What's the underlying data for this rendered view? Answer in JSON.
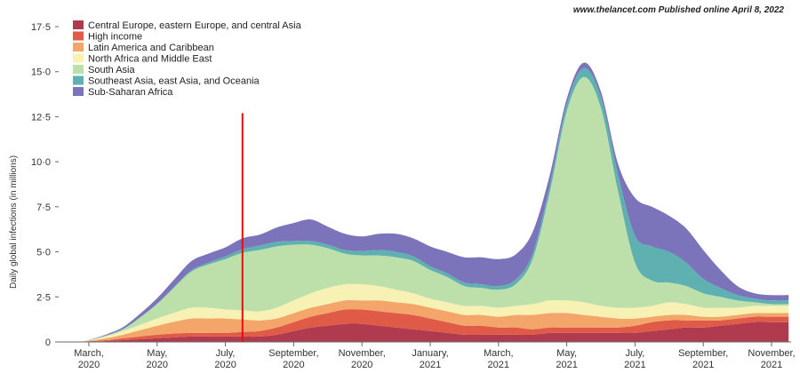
{
  "credit": "www.thelancet.com Published online April 8, 2022",
  "chart_data": {
    "type": "area",
    "stacked": true,
    "ylabel": "Daily global infections (in millions)",
    "ylim": [
      0,
      17.5
    ],
    "y_ticks": [
      0,
      2.5,
      5.0,
      7.5,
      10.0,
      12.5,
      15.0,
      17.5
    ],
    "y_tick_labels": [
      "0",
      "2·5",
      "5·0",
      "7·5",
      "10·0",
      "12·5",
      "15·0",
      "17·5"
    ],
    "x_ticks": [
      {
        "month": 0,
        "label": [
          "March,",
          "2020"
        ]
      },
      {
        "month": 2,
        "label": [
          "May,",
          "2020"
        ]
      },
      {
        "month": 4,
        "label": [
          "July,",
          "2020"
        ]
      },
      {
        "month": 6,
        "label": [
          "September,",
          "2020"
        ]
      },
      {
        "month": 8,
        "label": [
          "November,",
          "2020"
        ]
      },
      {
        "month": 10,
        "label": [
          "January,",
          "2021"
        ]
      },
      {
        "month": 12,
        "label": [
          "March,",
          "2021"
        ]
      },
      {
        "month": 14,
        "label": [
          "May,",
          "2021"
        ]
      },
      {
        "month": 16,
        "label": [
          "July,",
          "2021"
        ]
      },
      {
        "month": 18,
        "label": [
          "September,",
          "2021"
        ]
      },
      {
        "month": 20,
        "label": [
          "November,",
          "2021"
        ]
      }
    ],
    "x": [
      -0.8,
      -0.3,
      0,
      0.5,
      1,
      1.5,
      2,
      2.5,
      3,
      3.5,
      4,
      4.5,
      5,
      5.5,
      6,
      6.5,
      7,
      7.5,
      8,
      8.5,
      9,
      9.5,
      10,
      10.5,
      11,
      11.5,
      12,
      12.5,
      13,
      13.5,
      14,
      14.5,
      15,
      15.5,
      16,
      16.5,
      17,
      17.5,
      18,
      18.5,
      19,
      19.5,
      20,
      20.5
    ],
    "legend_position": "top-left",
    "series": [
      {
        "name": "Central Europe, eastern Europe, and central Asia",
        "color": "#b03a4e",
        "values": [
          0,
          0,
          0.02,
          0.05,
          0.1,
          0.15,
          0.2,
          0.25,
          0.3,
          0.3,
          0.3,
          0.3,
          0.3,
          0.4,
          0.6,
          0.8,
          0.9,
          1.0,
          1.0,
          0.9,
          0.8,
          0.7,
          0.6,
          0.5,
          0.4,
          0.4,
          0.4,
          0.4,
          0.4,
          0.5,
          0.5,
          0.5,
          0.5,
          0.5,
          0.5,
          0.6,
          0.7,
          0.8,
          0.8,
          0.9,
          1.0,
          1.1,
          1.1,
          1.1
        ]
      },
      {
        "name": "High income",
        "color": "#e05a48",
        "values": [
          0,
          0,
          0.02,
          0.05,
          0.1,
          0.15,
          0.2,
          0.22,
          0.2,
          0.2,
          0.2,
          0.25,
          0.3,
          0.4,
          0.5,
          0.6,
          0.7,
          0.8,
          0.8,
          0.8,
          0.8,
          0.8,
          0.7,
          0.6,
          0.5,
          0.5,
          0.4,
          0.4,
          0.3,
          0.3,
          0.3,
          0.3,
          0.3,
          0.3,
          0.4,
          0.5,
          0.5,
          0.4,
          0.4,
          0.3,
          0.3,
          0.3,
          0.3,
          0.3
        ]
      },
      {
        "name": "Latin America and Caribbean",
        "color": "#f4a66a",
        "values": [
          0,
          0,
          0.03,
          0.1,
          0.2,
          0.35,
          0.5,
          0.65,
          0.8,
          0.8,
          0.8,
          0.7,
          0.6,
          0.5,
          0.5,
          0.5,
          0.5,
          0.5,
          0.5,
          0.6,
          0.6,
          0.6,
          0.6,
          0.6,
          0.6,
          0.6,
          0.6,
          0.7,
          0.8,
          0.8,
          0.8,
          0.7,
          0.6,
          0.5,
          0.4,
          0.3,
          0.3,
          0.3,
          0.2,
          0.2,
          0.2,
          0.2,
          0.2,
          0.2
        ]
      },
      {
        "name": "North Africa and Middle East",
        "color": "#f7f1b4",
        "values": [
          0,
          0,
          0.02,
          0.1,
          0.2,
          0.3,
          0.4,
          0.5,
          0.6,
          0.6,
          0.5,
          0.5,
          0.5,
          0.6,
          0.7,
          0.8,
          0.9,
          0.9,
          0.9,
          0.8,
          0.7,
          0.6,
          0.5,
          0.5,
          0.5,
          0.5,
          0.5,
          0.5,
          0.6,
          0.7,
          0.7,
          0.7,
          0.6,
          0.6,
          0.6,
          0.6,
          0.7,
          0.6,
          0.5,
          0.5,
          0.4,
          0.4,
          0.4,
          0.4
        ]
      },
      {
        "name": "South Asia",
        "color": "#bde0aa",
        "values": [
          0,
          0,
          0.01,
          0.05,
          0.1,
          0.4,
          0.8,
          1.4,
          2.0,
          2.4,
          2.8,
          3.2,
          3.4,
          3.4,
          3.1,
          2.7,
          2.2,
          1.7,
          1.6,
          1.7,
          1.8,
          1.8,
          1.6,
          1.4,
          1.1,
          1.0,
          1.0,
          1.2,
          2.5,
          6.0,
          10.5,
          12.5,
          11.0,
          6.5,
          2.5,
          1.4,
          1.1,
          1.0,
          0.8,
          0.6,
          0.4,
          0.2,
          0.1,
          0.1
        ]
      },
      {
        "name": "Southeast Asia, east Asia, and Oceania",
        "color": "#5fb0b0",
        "values": [
          0,
          0,
          0,
          0.01,
          0.02,
          0.02,
          0.03,
          0.05,
          0.08,
          0.1,
          0.15,
          0.2,
          0.25,
          0.25,
          0.2,
          0.2,
          0.2,
          0.2,
          0.25,
          0.3,
          0.3,
          0.25,
          0.2,
          0.2,
          0.2,
          0.2,
          0.2,
          0.25,
          0.3,
          0.35,
          0.4,
          0.5,
          0.6,
          0.9,
          1.5,
          1.9,
          1.7,
          1.3,
          0.8,
          0.5,
          0.3,
          0.2,
          0.2,
          0.2
        ]
      },
      {
        "name": "Sub-Saharan Africa",
        "color": "#7b74bb",
        "values": [
          0,
          0,
          0.01,
          0.05,
          0.1,
          0.2,
          0.3,
          0.4,
          0.5,
          0.5,
          0.5,
          0.6,
          0.6,
          0.8,
          1.0,
          1.2,
          1.0,
          0.9,
          0.8,
          0.9,
          1.0,
          1.0,
          1.1,
          1.2,
          1.4,
          1.5,
          1.5,
          1.4,
          1.2,
          0.6,
          0.3,
          0.3,
          0.3,
          0.6,
          2.1,
          2.2,
          2.0,
          1.9,
          1.6,
          1.0,
          0.5,
          0.3,
          0.3,
          0.3
        ]
      }
    ],
    "annotations": [
      {
        "type": "vertical-line",
        "x": 4.5,
        "y_top": 12.7,
        "color": "#e01010"
      }
    ]
  }
}
